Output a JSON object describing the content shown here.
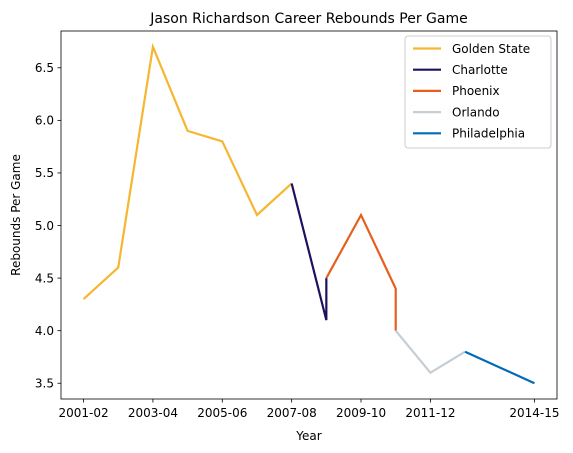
{
  "chart_data": {
    "type": "line",
    "title": "Jason Richardson Career Rebounds Per Game",
    "xlabel": "Year",
    "ylabel": "Rebounds Per Game",
    "ylim": [
      3.35,
      6.85
    ],
    "yticks": [
      3.5,
      4.0,
      4.5,
      5.0,
      5.5,
      6.0,
      6.5
    ],
    "xticks": [
      "2001-02",
      "2003-04",
      "2005-06",
      "2007-08",
      "2009-10",
      "2011-12",
      "2014-15"
    ],
    "legend_position": "top-right",
    "grid": false,
    "series": [
      {
        "name": "Golden State",
        "color": "#F5B731",
        "points": [
          {
            "x": "2001-02",
            "y": 4.3
          },
          {
            "x": "2002-03",
            "y": 4.6
          },
          {
            "x": "2003-04",
            "y": 6.7
          },
          {
            "x": "2004-05",
            "y": 5.9
          },
          {
            "x": "2005-06",
            "y": 5.8
          },
          {
            "x": "2006-07",
            "y": 5.1
          },
          {
            "x": "2007-08",
            "y": 5.4
          }
        ]
      },
      {
        "name": "Charlotte",
        "color": "#1D1160",
        "points": [
          {
            "x": "2007-08",
            "y": 5.4
          },
          {
            "x": "2008-09",
            "y": 4.1
          },
          {
            "x": "2008-09",
            "y": 4.5
          }
        ]
      },
      {
        "name": "Phoenix",
        "color": "#E56020",
        "points": [
          {
            "x": "2008-09",
            "y": 4.5
          },
          {
            "x": "2009-10",
            "y": 5.1
          },
          {
            "x": "2010-11",
            "y": 4.4
          },
          {
            "x": "2010-11",
            "y": 4.0
          }
        ]
      },
      {
        "name": "Orlando",
        "color": "#C4CED4",
        "points": [
          {
            "x": "2010-11",
            "y": 4.0
          },
          {
            "x": "2011-12",
            "y": 3.6
          },
          {
            "x": "2012-13",
            "y": 3.8
          }
        ]
      },
      {
        "name": "Philadelphia",
        "color": "#006BB6",
        "points": [
          {
            "x": "2012-13",
            "y": 3.8
          },
          {
            "x": "2014-15",
            "y": 3.5
          }
        ]
      }
    ]
  }
}
